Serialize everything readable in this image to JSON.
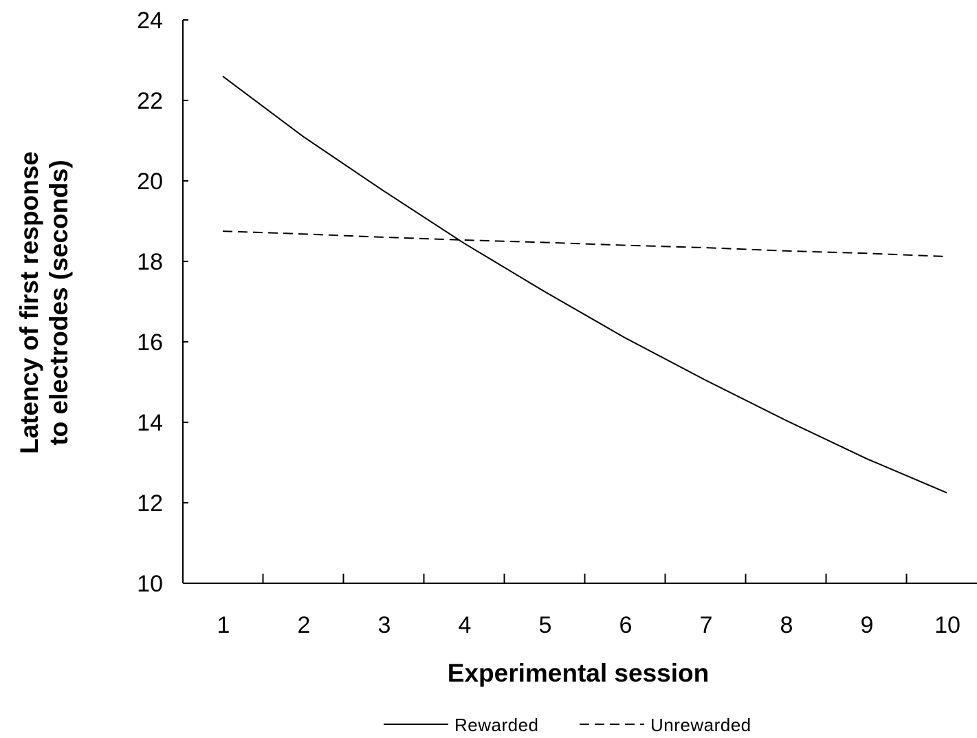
{
  "chart_data": {
    "type": "line",
    "title": "",
    "xlabel": "Experimental session",
    "ylabel_lines": [
      "Latency of first response",
      "to electrodes (seconds)"
    ],
    "categories": [
      "1",
      "2",
      "3",
      "4",
      "5",
      "6",
      "7",
      "8",
      "9",
      "10"
    ],
    "ylim": [
      10,
      24
    ],
    "yticks": [
      "10",
      "12",
      "14",
      "16",
      "18",
      "20",
      "22",
      "24"
    ],
    "grid": false,
    "legend_position": "bottom",
    "series": [
      {
        "name": "Rewarded",
        "style": "solid",
        "color": "#000000",
        "values": [
          22.6,
          21.1,
          19.75,
          18.45,
          17.25,
          16.1,
          15.05,
          14.05,
          13.1,
          12.25
        ]
      },
      {
        "name": "Unrewarded",
        "style": "dashed",
        "color": "#000000",
        "values": [
          18.75,
          18.68,
          18.6,
          18.53,
          18.47,
          18.4,
          18.34,
          18.26,
          18.2,
          18.12
        ]
      }
    ]
  }
}
